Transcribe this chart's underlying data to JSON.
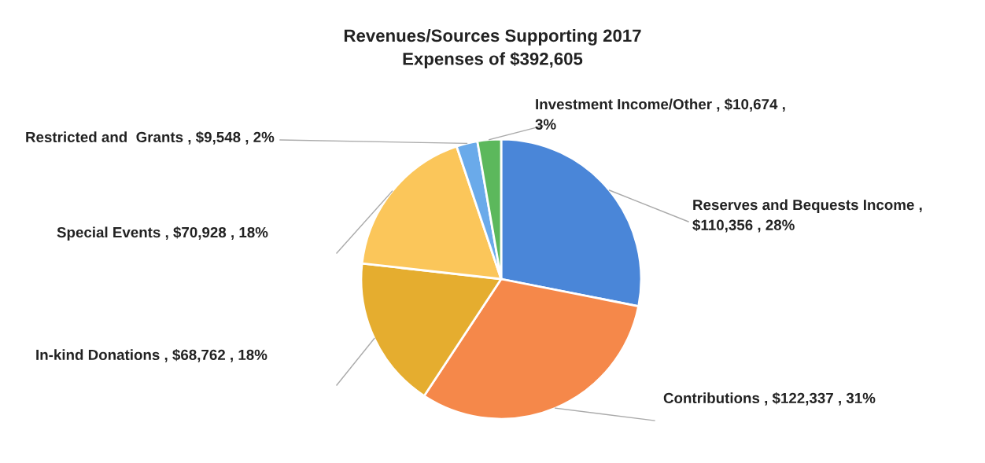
{
  "chart_data": {
    "type": "pie",
    "title": "Revenues/Sources Supporting 2017\nExpenses of $392,605",
    "categories": [
      "Reserves and Bequests Income",
      "Contributions",
      "In-kind Donations",
      "Special Events",
      "Restricted and  Grants",
      "Investment Income/Other"
    ],
    "values": [
      110356,
      122337,
      68762,
      70928,
      9548,
      10674
    ],
    "value_labels": [
      ", $110,356 , 28%",
      ", $122,337 , 31%",
      ", $68,762 , 18%",
      ", $70,928 , 18%",
      ", $9,548 , 2%",
      ", $10,674 , 3%"
    ],
    "colors": [
      "#4a86d8",
      "#f5884a",
      "#e5ad2f",
      "#fbc65a",
      "#6aaaea",
      "#5cb85c"
    ],
    "legend": false
  }
}
